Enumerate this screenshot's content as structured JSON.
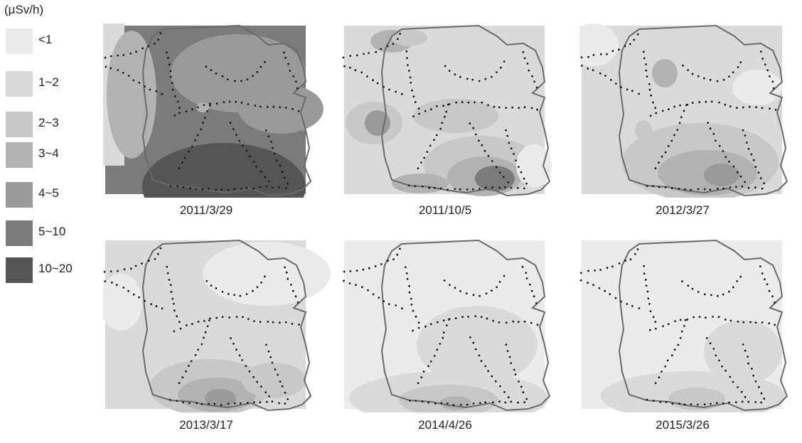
{
  "legend": {
    "unit": "(μSv/h)",
    "items": [
      {
        "label": "<1",
        "color": "#ebebeb"
      },
      {
        "label": "1~2",
        "color": "#dadada"
      },
      {
        "label": "2~3",
        "color": "#c8c8c8"
      },
      {
        "label": "3~4",
        "color": "#b2b2b2"
      },
      {
        "label": "4~5",
        "color": "#9a9a9a"
      },
      {
        "label": "5~10",
        "color": "#7b7b7b"
      },
      {
        "label": "10~20",
        "color": "#555555"
      }
    ]
  },
  "maps": [
    {
      "date": "2011/3/29"
    },
    {
      "date": "2011/10/5"
    },
    {
      "date": "2012/3/27"
    },
    {
      "date": "2013/3/17"
    },
    {
      "date": "2014/4/26"
    },
    {
      "date": "2015/3/26"
    }
  ],
  "colors": {
    "boundary": "#6a6a6a",
    "route_dots": "#1a1a1a"
  }
}
